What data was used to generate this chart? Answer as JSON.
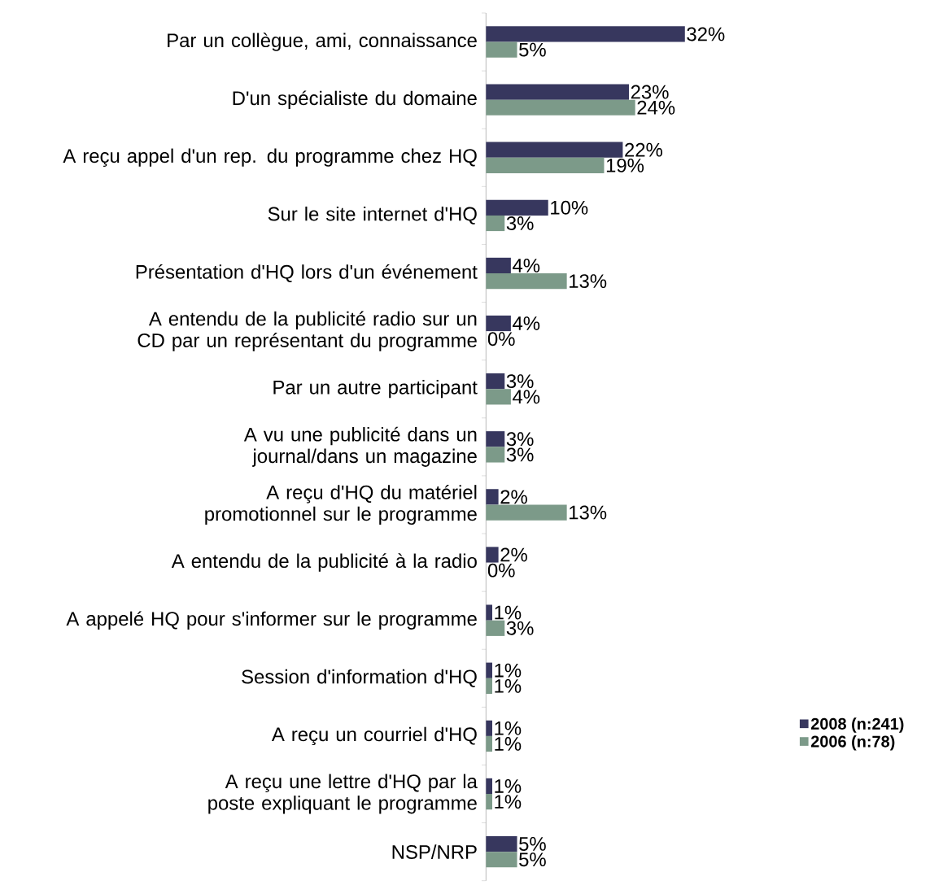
{
  "chart_data": {
    "type": "bar",
    "orientation": "horizontal",
    "legend": "right",
    "categories": [
      "Par un collègue, ami, connaissance",
      "D'un spécialiste du domaine",
      "A reçu appel d'un rep. du programme chez HQ",
      "Sur le site internet d'HQ",
      "Présentation d'HQ lors d'un événement",
      "A entendu de la publicité radio sur un CD par un représentant du programme",
      "Par un autre participant",
      "A vu une publicité dans un journal/dans un magazine",
      "A reçu d'HQ du matériel promotionnel sur le programme",
      "A entendu de la publicité à la radio",
      "A appelé HQ pour s'informer sur le programme",
      "Session d'information d'HQ",
      "A reçu un courriel d'HQ",
      "A reçu une lettre d'HQ par la poste expliquant le programme",
      "NSP/NRP"
    ],
    "series": [
      {
        "name": "2008 (n:241)",
        "color": "#37375e",
        "values": [
          32,
          23,
          22,
          10,
          4,
          4,
          3,
          3,
          2,
          2,
          1,
          1,
          1,
          1,
          5
        ],
        "value_labels": [
          "32%",
          "23%",
          "22%",
          "10%",
          "4%",
          "4%",
          "3%",
          "3%",
          "2%",
          "2%",
          "1%",
          "1%",
          "1%",
          "1%",
          "5%"
        ]
      },
      {
        "name": "2006 (n:78)",
        "color": "#7c9a89",
        "values": [
          5,
          24,
          19,
          3,
          13,
          0,
          4,
          3,
          13,
          0,
          3,
          1,
          1,
          1,
          5
        ],
        "value_labels": [
          "5%",
          "24%",
          "19%",
          "3%",
          "13%",
          "0%",
          "4%",
          "3%",
          "13%",
          "0%",
          "3%",
          "1%",
          "1%",
          "1%",
          "5%"
        ]
      }
    ]
  }
}
